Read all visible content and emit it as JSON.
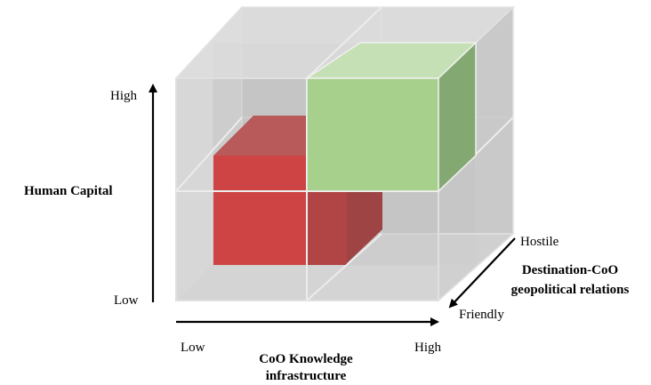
{
  "diagram": {
    "y_axis": {
      "title": "Human Capital",
      "low": "Low",
      "high": "High"
    },
    "x_axis": {
      "title_line1": "CoO Knowledge",
      "title_line2": "infrastructure",
      "low": "Low",
      "high": "High"
    },
    "z_axis": {
      "title_line1": "Destination-CoO",
      "title_line2": "geopolitical relations",
      "near": "Friendly",
      "far": "Hostile"
    },
    "highlighted_cells": [
      {
        "name": "red-cube",
        "color": "#d40000",
        "x": "Low",
        "y": "Low",
        "z": "Hostile"
      },
      {
        "name": "green-cube",
        "color": "#a8d08d",
        "x": "High",
        "y": "High",
        "z": "Friendly"
      }
    ],
    "grid_color": "#c8c8c8"
  }
}
